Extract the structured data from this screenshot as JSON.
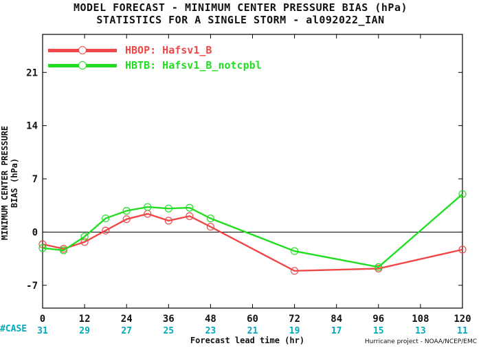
{
  "title_line1": "MODEL FORECAST - MINIMUM CENTER PRESSURE BIAS (hPa)",
  "title_line2": "STATISTICS FOR A SINGLE STORM - al092022_IAN",
  "credit": "Hurricane project - NOAA/NCEP/EMC",
  "case_label": "#CASE",
  "chart_data": {
    "type": "line",
    "xlabel": "Forecast lead time (hr)",
    "ylabel": "MINIMUM CENTER PRESSURE BIAS (hPa)",
    "xlim": [
      0,
      120
    ],
    "ylim": [
      -10,
      26
    ],
    "x_ticks": [
      0,
      12,
      24,
      36,
      48,
      60,
      72,
      84,
      96,
      108,
      120
    ],
    "y_ticks": [
      -7,
      0,
      7,
      14,
      21
    ],
    "case_counts": [
      31,
      29,
      27,
      25,
      23,
      21,
      19,
      17,
      15,
      13,
      11
    ],
    "zero_line": true,
    "grid": false,
    "legend_position": "top-left",
    "series": [
      {
        "name": "HBOP: Hafsv1_B",
        "color": "#f04848",
        "x": [
          0,
          6,
          12,
          18,
          24,
          30,
          36,
          42,
          48,
          72,
          96,
          120
        ],
        "y": [
          -1.6,
          -2.2,
          -1.3,
          0.2,
          1.7,
          2.4,
          1.5,
          2.1,
          0.7,
          -5.1,
          -4.8,
          -2.3
        ]
      },
      {
        "name": "HBTB: Hafsv1_B_notcpbl",
        "color": "#22dd22",
        "x": [
          0,
          6,
          12,
          18,
          24,
          30,
          36,
          42,
          48,
          72,
          96,
          120
        ],
        "y": [
          -2.1,
          -2.4,
          -0.6,
          1.8,
          2.8,
          3.3,
          3.1,
          3.2,
          1.8,
          -2.5,
          -4.6,
          5.0
        ]
      }
    ]
  }
}
